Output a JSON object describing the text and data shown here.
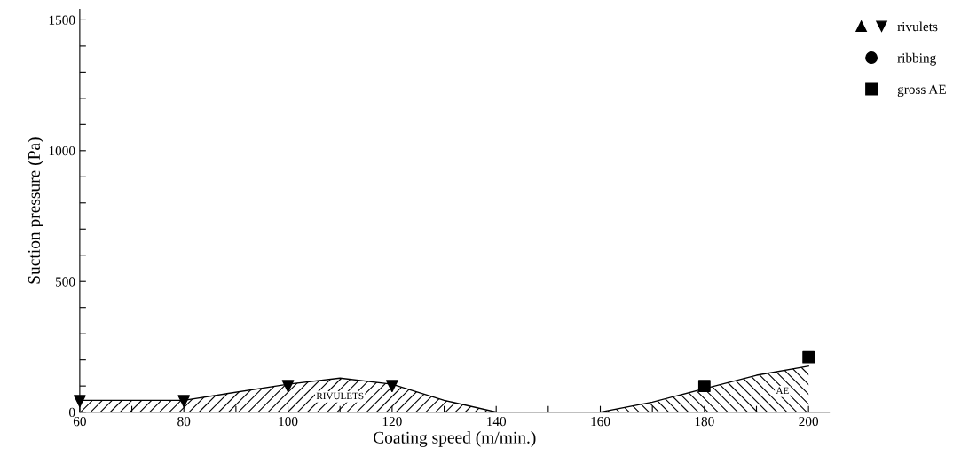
{
  "chart_data": {
    "type": "area",
    "xlabel": "Coating speed (m/min.)",
    "ylabel": "Suction pressure (Pa)",
    "series": [
      {
        "name": "RIVULETS",
        "color": "#000000",
        "x": [
          60,
          80,
          100,
          110,
          120,
          130,
          140
        ],
        "values": [
          45,
          45,
          107,
          130,
          107,
          45,
          0
        ]
      },
      {
        "name": "AE",
        "color": "#000000",
        "x": [
          160,
          170,
          180,
          190,
          200
        ],
        "values": [
          0,
          38,
          90,
          141,
          176
        ]
      },
      {
        "type": "scatter",
        "name": "rivulets",
        "color": "#000000",
        "marker": "triangle",
        "x": [
          60,
          80,
          100,
          120
        ],
        "values": [
          42,
          42,
          100,
          100
        ]
      },
      {
        "type": "scatter",
        "name": "ribbing",
        "color": "#000000",
        "marker": "circle"
      },
      {
        "type": "scatter",
        "name": "gross AE",
        "color": "#000000",
        "marker": "square",
        "x": [
          180,
          200
        ],
        "values": [
          100,
          210
        ]
      }
    ],
    "xlim": [
      60,
      204
    ],
    "ylim": [
      0,
      1540
    ],
    "xticks": [
      60,
      {
        "value": 70,
        "label": null
      },
      80,
      {
        "value": 90,
        "label": null
      },
      100,
      {
        "value": 110,
        "label": null
      },
      120,
      {
        "value": 130,
        "label": null
      },
      140,
      {
        "value": 150,
        "label": null
      },
      160,
      {
        "value": 170,
        "label": null
      },
      180,
      {
        "value": 190,
        "label": null
      },
      200
    ],
    "yticks": [
      0,
      {
        "value": 100,
        "label": null
      },
      {
        "value": 200,
        "label": null
      },
      {
        "value": 300,
        "label": null
      },
      {
        "value": 400,
        "label": null
      },
      500,
      {
        "value": 600,
        "label": null
      },
      {
        "value": 700,
        "label": null
      },
      {
        "value": 800,
        "label": null
      },
      {
        "value": 900,
        "label": null
      },
      1000,
      {
        "value": 1100,
        "label": null
      },
      {
        "value": 1200,
        "label": null
      },
      {
        "value": 1300,
        "label": null
      },
      {
        "value": 1400,
        "label": null
      },
      1500
    ],
    "grid": false,
    "legend": "top right"
  }
}
